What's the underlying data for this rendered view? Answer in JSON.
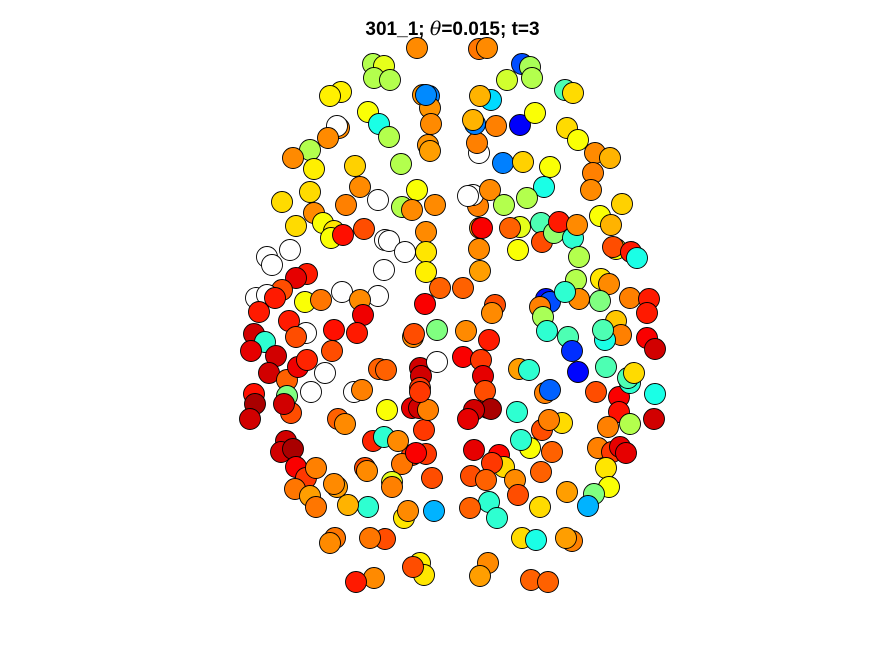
{
  "chart_data": {
    "type": "scatter",
    "title": {
      "prefix": "301_1; ",
      "theta_symbol": "θ",
      "suffix": "=0.015; t=3"
    },
    "xlabel": "",
    "ylabel": "",
    "axes_visible": false,
    "grid": false,
    "legend": "none",
    "colormap": "jet",
    "color_scale": {
      "0": "#00008F",
      "0.125": "#0000FF",
      "0.25": "#0080FF",
      "0.375": "#00FFFF",
      "0.5": "#80FF80",
      "0.625": "#FFFF00",
      "0.75": "#FF8000",
      "0.875": "#FF0000",
      "1": "#800000"
    },
    "marker_edge_color": "#000000",
    "no_value_color": "#ffffff",
    "xlim": [
      230,
      680
    ],
    "ylim": [
      40,
      600
    ],
    "points": [
      [
        373,
        64,
        0.55
      ],
      [
        384,
        66,
        0.6
      ],
      [
        417,
        48,
        0.74
      ],
      [
        341,
        92,
        0.64
      ],
      [
        330,
        96,
        0.64
      ],
      [
        374,
        78,
        0.55
      ],
      [
        390,
        80,
        0.55
      ],
      [
        423,
        95,
        0.73
      ],
      [
        429,
        96,
        0.25
      ],
      [
        368,
        112,
        0.62
      ],
      [
        379,
        124,
        0.4
      ],
      [
        389,
        137,
        0.55
      ],
      [
        430,
        108,
        0.73
      ],
      [
        431,
        124,
        0.74
      ],
      [
        428,
        145,
        0.73
      ],
      [
        430,
        151,
        0.72
      ],
      [
        339,
        128,
        0.74
      ],
      [
        337,
        126,
        null
      ],
      [
        328,
        138,
        0.74
      ],
      [
        310,
        150,
        0.55
      ],
      [
        293,
        158,
        0.74
      ],
      [
        314,
        169,
        0.64
      ],
      [
        355,
        166,
        0.67
      ],
      [
        401,
        164,
        0.55
      ],
      [
        360,
        187,
        0.74
      ],
      [
        378,
        200,
        null
      ],
      [
        417,
        190,
        0.62
      ],
      [
        435,
        205,
        0.74
      ],
      [
        402,
        207,
        0.55
      ],
      [
        412,
        210,
        0.74
      ],
      [
        310,
        192,
        0.66
      ],
      [
        282,
        202,
        0.66
      ],
      [
        314,
        213,
        0.74
      ],
      [
        296,
        226,
        0.66
      ],
      [
        323,
        223,
        0.62
      ],
      [
        346,
        205,
        0.75
      ],
      [
        364,
        229,
        0.8
      ],
      [
        334,
        231,
        0.65
      ],
      [
        331,
        238,
        0.62
      ],
      [
        343,
        235,
        0.86
      ],
      [
        385,
        240,
        null
      ],
      [
        389,
        241,
        null
      ],
      [
        405,
        252,
        null
      ],
      [
        384,
        270,
        null
      ],
      [
        426,
        232,
        0.74
      ],
      [
        426,
        252,
        0.65
      ],
      [
        426,
        272,
        0.64
      ],
      [
        290,
        250,
        null
      ],
      [
        267,
        257,
        null
      ],
      [
        272,
        265,
        null
      ],
      [
        307,
        274,
        0.85
      ],
      [
        296,
        278,
        0.9
      ],
      [
        282,
        290,
        0.8
      ],
      [
        305,
        302,
        0.62
      ],
      [
        321,
        300,
        0.76
      ],
      [
        342,
        292,
        null
      ],
      [
        378,
        296,
        null
      ],
      [
        256,
        298,
        null
      ],
      [
        267,
        295,
        null
      ],
      [
        275,
        298,
        0.85
      ],
      [
        259,
        312,
        0.85
      ],
      [
        289,
        321,
        0.85
      ],
      [
        306,
        333,
        null
      ],
      [
        296,
        337,
        0.8
      ],
      [
        254,
        334,
        0.92
      ],
      [
        265,
        342,
        0.42
      ],
      [
        251,
        351,
        0.9
      ],
      [
        360,
        300,
        0.74
      ],
      [
        363,
        315,
        0.89
      ],
      [
        334,
        330,
        0.86
      ],
      [
        357,
        333,
        0.85
      ],
      [
        332,
        351,
        0.8
      ],
      [
        276,
        356,
        0.92
      ],
      [
        269,
        373,
        0.92
      ],
      [
        287,
        380,
        0.78
      ],
      [
        298,
        367,
        0.89
      ],
      [
        325,
        373,
        null
      ],
      [
        311,
        392,
        null
      ],
      [
        354,
        392,
        null
      ],
      [
        362,
        390,
        0.75
      ],
      [
        379,
        369,
        0.78
      ],
      [
        386,
        370,
        0.78
      ],
      [
        420,
        368,
        0.92
      ],
      [
        421,
        376,
        0.92
      ],
      [
        437,
        362,
        null
      ],
      [
        413,
        337,
        0.74
      ],
      [
        414,
        334,
        0.8
      ],
      [
        437,
        330,
        0.5
      ],
      [
        425,
        304,
        0.88
      ],
      [
        440,
        288,
        0.78
      ],
      [
        463,
        288,
        0.78
      ],
      [
        480,
        271,
        0.72
      ],
      [
        479,
        249,
        0.74
      ],
      [
        480,
        228,
        0.74
      ],
      [
        478,
        206,
        0.75
      ],
      [
        473,
        195,
        null
      ],
      [
        468,
        196,
        null
      ],
      [
        490,
        190,
        0.74
      ],
      [
        503,
        163,
        0.25
      ],
      [
        479,
        153,
        null
      ],
      [
        477,
        143,
        0.75
      ],
      [
        475,
        124,
        0.25
      ],
      [
        473,
        120,
        0.7
      ],
      [
        496,
        126,
        0.75
      ],
      [
        520,
        125,
        0.12
      ],
      [
        535,
        113,
        0.62
      ],
      [
        491,
        100,
        0.34
      ],
      [
        480,
        96,
        0.7
      ],
      [
        507,
        80,
        0.58
      ],
      [
        522,
        64,
        0.2
      ],
      [
        530,
        67,
        0.54
      ],
      [
        532,
        78,
        0.55
      ],
      [
        479,
        49,
        0.76
      ],
      [
        487,
        48,
        0.74
      ],
      [
        426,
        95,
        0.26
      ],
      [
        523,
        162,
        0.67
      ],
      [
        550,
        167,
        0.62
      ],
      [
        544,
        187,
        0.4
      ],
      [
        527,
        198,
        0.55
      ],
      [
        504,
        205,
        0.55
      ],
      [
        520,
        227,
        0.6
      ],
      [
        518,
        250,
        0.62
      ],
      [
        510,
        228,
        0.78
      ],
      [
        482,
        228,
        0.88
      ],
      [
        541,
        223,
        0.45
      ],
      [
        542,
        242,
        0.8
      ],
      [
        554,
        233,
        0.52
      ],
      [
        573,
        238,
        0.42
      ],
      [
        559,
        222,
        0.85
      ],
      [
        577,
        225,
        0.74
      ],
      [
        565,
        90,
        0.45
      ],
      [
        573,
        93,
        0.66
      ],
      [
        567,
        128,
        0.66
      ],
      [
        578,
        140,
        0.62
      ],
      [
        595,
        153,
        0.74
      ],
      [
        610,
        158,
        0.7
      ],
      [
        593,
        173,
        0.75
      ],
      [
        591,
        190,
        0.74
      ],
      [
        622,
        204,
        0.67
      ],
      [
        600,
        216,
        0.62
      ],
      [
        611,
        225,
        0.7
      ],
      [
        616,
        249,
        0.62
      ],
      [
        613,
        247,
        0.8
      ],
      [
        631,
        252,
        0.85
      ],
      [
        637,
        258,
        0.4
      ],
      [
        579,
        257,
        0.55
      ],
      [
        576,
        280,
        0.55
      ],
      [
        601,
        279,
        0.65
      ],
      [
        609,
        284,
        0.74
      ],
      [
        579,
        299,
        0.74
      ],
      [
        600,
        301,
        0.5
      ],
      [
        630,
        298,
        0.75
      ],
      [
        649,
        299,
        0.85
      ],
      [
        647,
        313,
        0.85
      ],
      [
        616,
        321,
        0.68
      ],
      [
        621,
        335,
        0.75
      ],
      [
        647,
        338,
        0.88
      ],
      [
        655,
        349,
        0.92
      ],
      [
        605,
        340,
        0.4
      ],
      [
        603,
        330,
        0.45
      ],
      [
        568,
        337,
        0.45
      ],
      [
        572,
        351,
        0.17
      ],
      [
        578,
        372,
        0.13
      ],
      [
        546,
        299,
        0.14
      ],
      [
        550,
        302,
        0.2
      ],
      [
        565,
        292,
        0.42
      ],
      [
        540,
        307,
        0.75
      ],
      [
        543,
        317,
        0.54
      ],
      [
        547,
        331,
        0.42
      ],
      [
        495,
        305,
        0.8
      ],
      [
        492,
        313,
        0.74
      ],
      [
        466,
        331,
        0.74
      ],
      [
        489,
        340,
        0.85
      ],
      [
        463,
        357,
        0.88
      ],
      [
        481,
        360,
        0.82
      ],
      [
        483,
        376,
        0.9
      ],
      [
        488,
        408,
        0.92
      ],
      [
        485,
        391,
        0.8
      ],
      [
        491,
        409,
        0.96
      ],
      [
        474,
        410,
        0.92
      ],
      [
        468,
        419,
        0.9
      ],
      [
        517,
        412,
        0.42
      ],
      [
        519,
        369,
        0.72
      ],
      [
        529,
        370,
        0.42
      ],
      [
        545,
        393,
        0.75
      ],
      [
        550,
        390,
        0.22
      ],
      [
        596,
        392,
        0.8
      ],
      [
        619,
        397,
        0.88
      ],
      [
        630,
        383,
        0.42
      ],
      [
        628,
        378,
        0.45
      ],
      [
        606,
        367,
        0.45
      ],
      [
        634,
        373,
        0.66
      ],
      [
        655,
        394,
        0.4
      ],
      [
        619,
        412,
        0.86
      ],
      [
        608,
        427,
        0.75
      ],
      [
        630,
        424,
        0.55
      ],
      [
        654,
        419,
        0.92
      ],
      [
        598,
        448,
        0.75
      ],
      [
        612,
        452,
        0.82
      ],
      [
        620,
        447,
        0.9
      ],
      [
        626,
        453,
        0.9
      ],
      [
        606,
        468,
        0.65
      ],
      [
        609,
        487,
        0.62
      ],
      [
        594,
        494,
        0.5
      ],
      [
        588,
        506,
        0.3
      ],
      [
        567,
        492,
        0.72
      ],
      [
        541,
        472,
        0.78
      ],
      [
        552,
        452,
        0.78
      ],
      [
        542,
        430,
        0.8
      ],
      [
        562,
        423,
        0.66
      ],
      [
        549,
        420,
        0.75
      ],
      [
        530,
        448,
        0.62
      ],
      [
        521,
        440,
        0.42
      ],
      [
        499,
        455,
        0.87
      ],
      [
        504,
        467,
        0.66
      ],
      [
        492,
        463,
        0.82
      ],
      [
        474,
        450,
        0.9
      ],
      [
        471,
        476,
        0.8
      ],
      [
        486,
        480,
        0.78
      ],
      [
        515,
        480,
        0.74
      ],
      [
        518,
        495,
        0.8
      ],
      [
        489,
        502,
        0.42
      ],
      [
        497,
        518,
        0.42
      ],
      [
        470,
        508,
        0.78
      ],
      [
        540,
        507,
        0.66
      ],
      [
        522,
        538,
        0.66
      ],
      [
        536,
        540,
        0.4
      ],
      [
        572,
        541,
        0.75
      ],
      [
        566,
        538,
        0.72
      ],
      [
        531,
        580,
        0.78
      ],
      [
        548,
        582,
        0.78
      ],
      [
        488,
        563,
        0.74
      ],
      [
        480,
        576,
        0.72
      ],
      [
        420,
        563,
        0.64
      ],
      [
        424,
        575,
        0.65
      ],
      [
        413,
        567,
        0.8
      ],
      [
        374,
        578,
        0.74
      ],
      [
        356,
        582,
        0.85
      ],
      [
        385,
        539,
        0.8
      ],
      [
        370,
        538,
        0.76
      ],
      [
        335,
        538,
        0.76
      ],
      [
        330,
        543,
        0.74
      ],
      [
        404,
        518,
        0.65
      ],
      [
        408,
        511,
        0.74
      ],
      [
        434,
        511,
        0.3
      ],
      [
        432,
        478,
        0.8
      ],
      [
        426,
        454,
        0.82
      ],
      [
        412,
        455,
        0.82
      ],
      [
        402,
        464,
        0.76
      ],
      [
        392,
        482,
        0.6
      ],
      [
        392,
        487,
        0.75
      ],
      [
        368,
        507,
        0.42
      ],
      [
        348,
        505,
        0.7
      ],
      [
        365,
        468,
        0.8
      ],
      [
        373,
        441,
        0.84
      ],
      [
        384,
        437,
        0.42
      ],
      [
        398,
        441,
        0.74
      ],
      [
        416,
        453,
        0.88
      ],
      [
        412,
        408,
        0.9
      ],
      [
        419,
        408,
        0.92
      ],
      [
        424,
        430,
        0.82
      ],
      [
        428,
        410,
        0.75
      ],
      [
        387,
        410,
        0.62
      ],
      [
        338,
        419,
        0.78
      ],
      [
        345,
        424,
        0.74
      ],
      [
        291,
        413,
        0.8
      ],
      [
        287,
        396,
        0.5
      ],
      [
        284,
        404,
        0.92
      ],
      [
        254,
        394,
        0.86
      ],
      [
        255,
        404,
        0.96
      ],
      [
        250,
        419,
        0.92
      ],
      [
        286,
        441,
        0.92
      ],
      [
        281,
        452,
        0.92
      ],
      [
        293,
        449,
        0.96
      ],
      [
        296,
        467,
        0.88
      ],
      [
        306,
        478,
        0.82
      ],
      [
        295,
        489,
        0.76
      ],
      [
        310,
        496,
        0.72
      ],
      [
        316,
        507,
        0.76
      ],
      [
        337,
        487,
        0.72
      ],
      [
        334,
        484,
        0.74
      ],
      [
        367,
        471,
        0.74
      ],
      [
        420,
        388,
        0.82
      ],
      [
        420,
        392,
        0.82
      ],
      [
        307,
        360,
        0.84
      ],
      [
        316,
        468,
        0.75
      ]
    ]
  }
}
